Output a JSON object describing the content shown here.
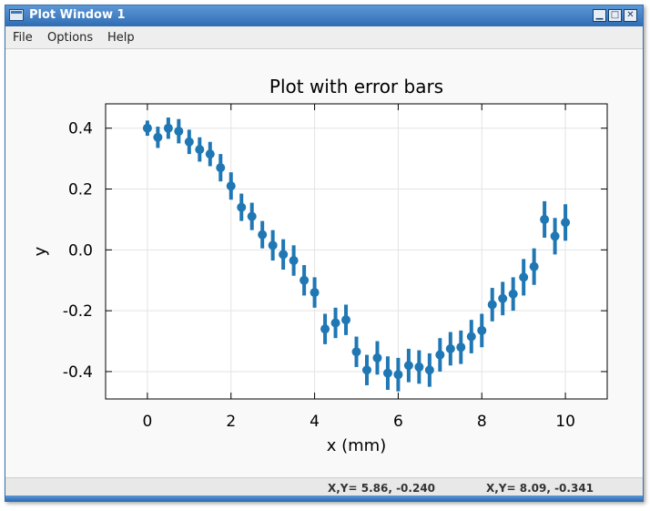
{
  "window": {
    "title": "Plot Window 1",
    "buttons": {
      "minimize": "▁",
      "maximize": "□",
      "close": "✕"
    }
  },
  "menu": {
    "items": [
      "File",
      "Options",
      "Help"
    ]
  },
  "status": {
    "left": "X,Y= 5.86, -0.240",
    "right": "X,Y= 8.09, -0.341"
  },
  "colors": {
    "series": "#1f77b4",
    "titlebar": "#3f7fc4"
  },
  "chart_data": {
    "type": "scatter",
    "title": "Plot with error bars",
    "xlabel": "x (mm)",
    "ylabel": "y",
    "xlim": [
      -1,
      11
    ],
    "ylim": [
      -0.49,
      0.48
    ],
    "xticks": [
      0,
      2,
      4,
      6,
      8,
      10
    ],
    "xtick_labels": [
      "0",
      "2",
      "4",
      "6",
      "8",
      "10"
    ],
    "yticks": [
      0.4,
      0.2,
      0.0,
      -0.2,
      -0.4
    ],
    "ytick_labels": [
      "0.4",
      "0.2",
      "0.0",
      "-0.2",
      "-0.4"
    ],
    "grid": true,
    "error_bars": true,
    "x": [
      0.0,
      0.25,
      0.5,
      0.75,
      1.0,
      1.25,
      1.5,
      1.75,
      2.0,
      2.25,
      2.5,
      2.75,
      3.0,
      3.25,
      3.5,
      3.75,
      4.0,
      4.25,
      4.5,
      4.75,
      5.0,
      5.25,
      5.5,
      5.75,
      6.0,
      6.25,
      6.5,
      6.75,
      7.0,
      7.25,
      7.5,
      7.75,
      8.0,
      8.25,
      8.5,
      8.75,
      9.0,
      9.25,
      9.5,
      9.75,
      10.0
    ],
    "y": [
      0.4,
      0.37,
      0.4,
      0.39,
      0.355,
      0.33,
      0.315,
      0.27,
      0.21,
      0.14,
      0.11,
      0.05,
      0.015,
      -0.015,
      -0.035,
      -0.1,
      -0.14,
      -0.26,
      -0.24,
      -0.23,
      -0.335,
      -0.395,
      -0.355,
      -0.405,
      -0.41,
      -0.38,
      -0.385,
      -0.395,
      -0.345,
      -0.325,
      -0.32,
      -0.285,
      -0.265,
      -0.18,
      -0.16,
      -0.145,
      -0.09,
      -0.055,
      0.1,
      0.045,
      0.09
    ],
    "yerr": [
      0.025,
      0.035,
      0.035,
      0.04,
      0.04,
      0.04,
      0.04,
      0.045,
      0.045,
      0.045,
      0.045,
      0.045,
      0.05,
      0.05,
      0.05,
      0.05,
      0.05,
      0.05,
      0.05,
      0.05,
      0.05,
      0.05,
      0.055,
      0.055,
      0.055,
      0.055,
      0.055,
      0.055,
      0.055,
      0.055,
      0.055,
      0.055,
      0.055,
      0.055,
      0.055,
      0.055,
      0.06,
      0.06,
      0.06,
      0.06,
      0.06
    ]
  }
}
